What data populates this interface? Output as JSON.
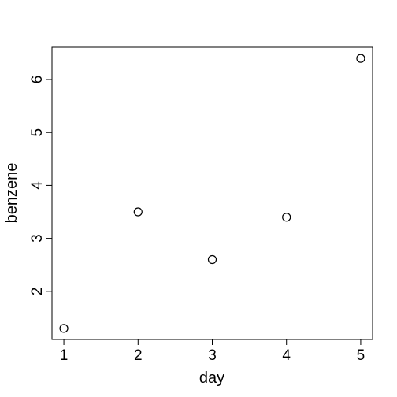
{
  "chart_data": {
    "type": "scatter",
    "title": "",
    "xlabel": "day",
    "ylabel": "benzene",
    "x": [
      1,
      2,
      3,
      4,
      5
    ],
    "y": [
      1.3,
      3.5,
      2.6,
      3.4,
      6.4
    ],
    "xlim": [
      0.84,
      5.16
    ],
    "ylim": [
      1.09,
      6.61
    ],
    "xticks": [
      1,
      2,
      3,
      4,
      5
    ],
    "yticks": [
      2,
      3,
      4,
      5,
      6
    ],
    "grid": false,
    "legend": "none",
    "point_style": "open-circle",
    "colors": {
      "points": "#000000",
      "axes": "#000000",
      "background": "#ffffff"
    }
  }
}
